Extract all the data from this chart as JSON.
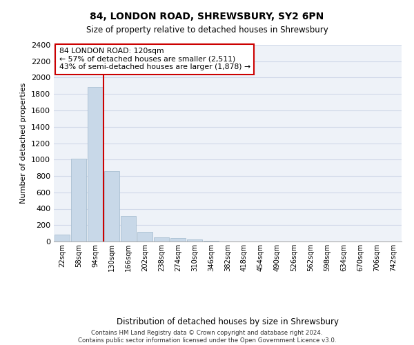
{
  "title1": "84, LONDON ROAD, SHREWSBURY, SY2 6PN",
  "title2": "Size of property relative to detached houses in Shrewsbury",
  "xlabel": "Distribution of detached houses by size in Shrewsbury",
  "ylabel": "Number of detached properties",
  "bar_labels": [
    "22sqm",
    "58sqm",
    "94sqm",
    "130sqm",
    "166sqm",
    "202sqm",
    "238sqm",
    "274sqm",
    "310sqm",
    "346sqm",
    "382sqm",
    "418sqm",
    "454sqm",
    "490sqm",
    "526sqm",
    "562sqm",
    "598sqm",
    "634sqm",
    "670sqm",
    "706sqm",
    "742sqm"
  ],
  "bar_values": [
    85,
    1010,
    1890,
    860,
    315,
    115,
    48,
    38,
    25,
    12,
    0,
    0,
    0,
    0,
    0,
    0,
    0,
    0,
    0,
    0,
    0
  ],
  "bar_color": "#c8d8e8",
  "bar_edgecolor": "#a0b8cc",
  "property_line_x": 2.5,
  "annotation_line1": "84 LONDON ROAD: 120sqm",
  "annotation_line2": "← 57% of detached houses are smaller (2,511)",
  "annotation_line3": "43% of semi-detached houses are larger (1,878) →",
  "annotation_box_color": "#ffffff",
  "annotation_box_edgecolor": "#cc0000",
  "vline_color": "#cc0000",
  "ylim": [
    0,
    2400
  ],
  "yticks": [
    0,
    200,
    400,
    600,
    800,
    1000,
    1200,
    1400,
    1600,
    1800,
    2000,
    2200,
    2400
  ],
  "grid_color": "#d0d8e8",
  "background_color": "#eef2f8",
  "footer_line1": "Contains HM Land Registry data © Crown copyright and database right 2024.",
  "footer_line2": "Contains public sector information licensed under the Open Government Licence v3.0."
}
